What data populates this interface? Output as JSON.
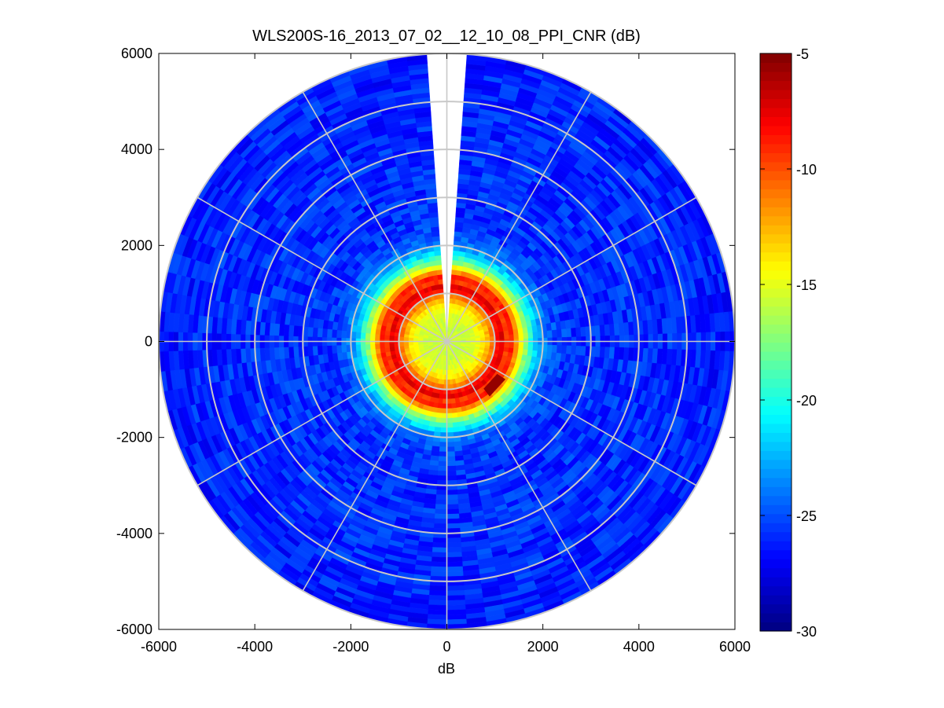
{
  "chart_data": {
    "type": "heatmap",
    "subtype": "polar-ppi-scan",
    "title": "WLS200S-16_2013_07_02__12_10_08_PPI_CNR (dB)",
    "xlabel": "dB",
    "ylabel": "",
    "xlim": [
      -6000,
      6000
    ],
    "ylim": [
      -6000,
      6000
    ],
    "xticks": [
      -6000,
      -4000,
      -2000,
      0,
      2000,
      4000,
      6000
    ],
    "yticks": [
      -6000,
      -4000,
      -2000,
      0,
      2000,
      4000,
      6000
    ],
    "xtick_labels": [
      "-6000",
      "-4000",
      "-2000",
      "0",
      "2000",
      "4000",
      "6000"
    ],
    "ytick_labels": [
      "-6000",
      "-4000",
      "-2000",
      "0",
      "2000",
      "4000",
      "6000"
    ],
    "grid_rings": [
      1000,
      2000,
      3000,
      4000,
      5000,
      6000
    ],
    "grid_spokes_deg": [
      0,
      30,
      60,
      90,
      120,
      150,
      180,
      210,
      240,
      270,
      300,
      330
    ],
    "max_range": 6000,
    "gap_azimuth_deg": [
      -4,
      4
    ],
    "radial_profile": [
      {
        "r": 0,
        "cnr": -15.5
      },
      {
        "r": 300,
        "cnr": -15.8
      },
      {
        "r": 600,
        "cnr": -15.2
      },
      {
        "r": 800,
        "cnr": -13.5
      },
      {
        "r": 950,
        "cnr": -11
      },
      {
        "r": 1050,
        "cnr": -8.5
      },
      {
        "r": 1150,
        "cnr": -7.5
      },
      {
        "r": 1250,
        "cnr": -9.5
      },
      {
        "r": 1350,
        "cnr": -8.8
      },
      {
        "r": 1450,
        "cnr": -11.5
      },
      {
        "r": 1550,
        "cnr": -14.5
      },
      {
        "r": 1700,
        "cnr": -18.5
      },
      {
        "r": 1850,
        "cnr": -21.5
      },
      {
        "r": 2000,
        "cnr": -23.5
      },
      {
        "r": 2200,
        "cnr": -25
      },
      {
        "r": 2600,
        "cnr": -25.8
      },
      {
        "r": 3500,
        "cnr": -25.8
      },
      {
        "r": 5000,
        "cnr": -26
      },
      {
        "r": 6000,
        "cnr": -26.2
      }
    ],
    "feature_arc": {
      "range": [
        1250,
        1450
      ],
      "azimuth_deg": [
        123,
        142
      ],
      "cnr": -5.5
    },
    "colorbar": {
      "clim": [
        -30,
        -5
      ],
      "ticks": [
        -30,
        -25,
        -20,
        -15,
        -10,
        -5
      ],
      "tick_labels": [
        "-30",
        "-25",
        "-20",
        "-15",
        "-10",
        "-5"
      ],
      "colormap": "jet"
    },
    "colors": {
      "grid": "#c8c8c8",
      "axis": "#000000",
      "background": "#ffffff"
    }
  }
}
